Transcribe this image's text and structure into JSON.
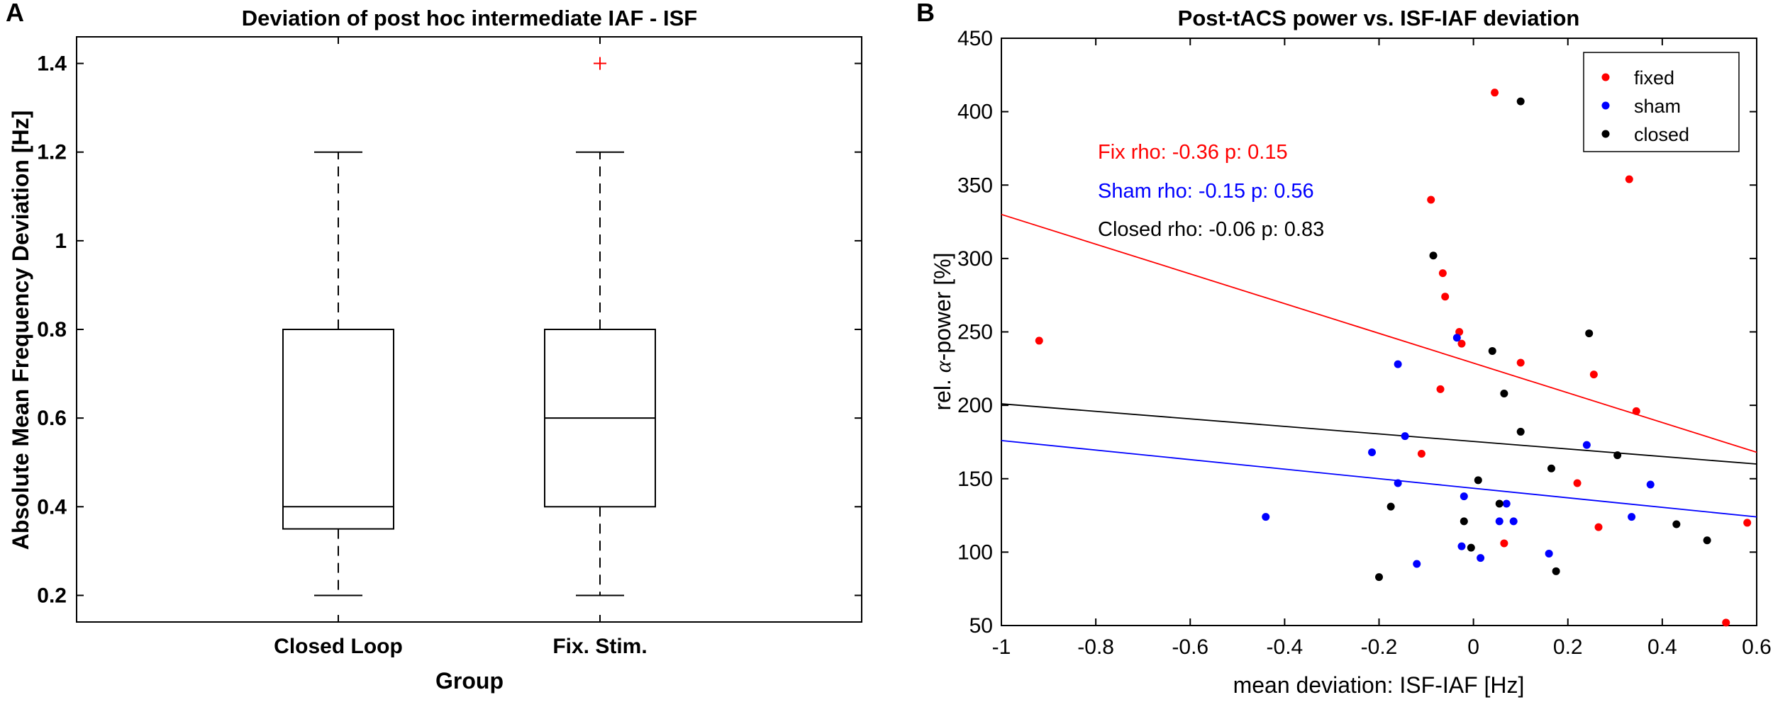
{
  "chart_data": [
    {
      "type": "box",
      "panel_label": "A",
      "title": "Deviation of post hoc intermediate IAF - ISF",
      "xlabel": "Group",
      "ylabel": "Absolute Mean Frequency Deviation [Hz]",
      "ylim": [
        0.14,
        1.46
      ],
      "yticks": [
        0.2,
        0.4,
        0.6,
        0.8,
        1,
        1.2,
        1.4
      ],
      "ytick_labels": [
        "0.2",
        "0.4",
        "0.6",
        "0.8",
        "1",
        "1.2",
        "1.4"
      ],
      "categories": [
        "Closed Loop",
        "Fix. Stim."
      ],
      "boxes": [
        {
          "min": 0.2,
          "q1": 0.35,
          "median": 0.4,
          "q3": 0.8,
          "max": 1.2,
          "outliers": []
        },
        {
          "min": 0.2,
          "q1": 0.4,
          "median": 0.6,
          "q3": 0.8,
          "max": 1.2,
          "outliers": [
            1.4
          ]
        }
      ],
      "box_color": "#000000",
      "outlier_color": "#ff0000"
    },
    {
      "type": "scatter",
      "panel_label": "B",
      "title": "Post-tACS power vs. ISF-IAF deviation",
      "xlabel": "mean deviation: ISF-IAF [Hz]",
      "ylabel_prefix": "rel. ",
      "ylabel_symbol": "α",
      "ylabel_suffix": "-power [%]",
      "xlim": [
        -1,
        0.6
      ],
      "ylim": [
        50,
        450
      ],
      "xticks": [
        -1,
        -0.8,
        -0.6,
        -0.4,
        -0.2,
        0,
        0.2,
        0.4,
        0.6
      ],
      "xtick_labels": [
        "-1",
        "-0.8",
        "-0.6",
        "-0.4",
        "-0.2",
        "0",
        "0.2",
        "0.4",
        "0.6"
      ],
      "yticks": [
        50,
        100,
        150,
        200,
        250,
        300,
        350,
        400,
        450
      ],
      "ytick_labels": [
        "50",
        "100",
        "150",
        "200",
        "250",
        "300",
        "350",
        "400",
        "450"
      ],
      "legend_position": "top-right",
      "series": [
        {
          "name": "fixed",
          "color": "#ff0000",
          "points": [
            [
              -0.92,
              244
            ],
            [
              -0.09,
              340
            ],
            [
              -0.065,
              290
            ],
            [
              -0.06,
              274
            ],
            [
              -0.025,
              242
            ],
            [
              -0.03,
              250
            ],
            [
              -0.07,
              211
            ],
            [
              -0.11,
              167
            ],
            [
              0.045,
              413
            ],
            [
              0.1,
              229
            ],
            [
              0.33,
              354
            ],
            [
              0.255,
              221
            ],
            [
              0.345,
              196
            ],
            [
              0.22,
              147
            ],
            [
              0.065,
              106
            ],
            [
              0.265,
              117
            ],
            [
              0.535,
              52
            ],
            [
              0.58,
              120
            ]
          ],
          "fit": {
            "y_at_xmin": 330,
            "y_at_xmax": 168
          }
        },
        {
          "name": "sham",
          "color": "#0000ff",
          "points": [
            [
              -0.44,
              124
            ],
            [
              -0.16,
              228
            ],
            [
              -0.215,
              168
            ],
            [
              -0.145,
              179
            ],
            [
              -0.16,
              147
            ],
            [
              -0.12,
              92
            ],
            [
              -0.035,
              246
            ],
            [
              -0.02,
              138
            ],
            [
              -0.025,
              104
            ],
            [
              0.015,
              96
            ],
            [
              0.055,
              121
            ],
            [
              0.07,
              133
            ],
            [
              0.085,
              121
            ],
            [
              0.16,
              99
            ],
            [
              0.24,
              173
            ],
            [
              0.335,
              124
            ],
            [
              0.375,
              146
            ]
          ],
          "fit": {
            "y_at_xmin": 176,
            "y_at_xmax": 124
          }
        },
        {
          "name": "closed",
          "color": "#000000",
          "points": [
            [
              -0.085,
              302
            ],
            [
              0.1,
              407
            ],
            [
              0.04,
              237
            ],
            [
              0.065,
              208
            ],
            [
              0.1,
              182
            ],
            [
              0.245,
              249
            ],
            [
              -0.2,
              83
            ],
            [
              -0.175,
              131
            ],
            [
              -0.02,
              121
            ],
            [
              -0.005,
              103
            ],
            [
              0.01,
              149
            ],
            [
              0.055,
              133
            ],
            [
              0.165,
              157
            ],
            [
              0.175,
              87
            ],
            [
              0.305,
              166
            ],
            [
              0.43,
              119
            ],
            [
              0.495,
              108
            ]
          ],
          "fit": {
            "y_at_xmin": 201,
            "y_at_xmax": 160
          }
        }
      ],
      "annotations": [
        {
          "text": "Fix rho: -0.36 p: 0.15",
          "color": "#ff0000"
        },
        {
          "text": "Sham rho: -0.15 p: 0.56",
          "color": "#0000ff"
        },
        {
          "text": "Closed rho: -0.06 p: 0.83",
          "color": "#000000"
        }
      ]
    }
  ]
}
